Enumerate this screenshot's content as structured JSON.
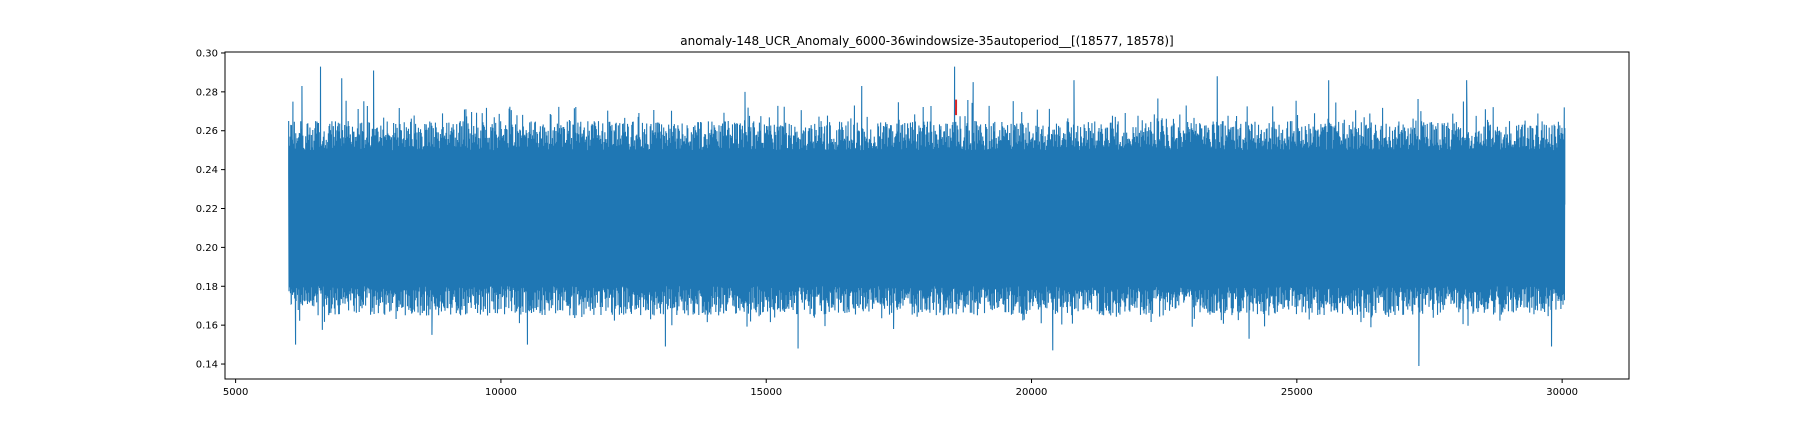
{
  "chart_data": {
    "type": "line",
    "title": "anomaly-148_UCR_Anomaly_6000-36windowsize-35autoperiod__[(18577, 18578)]",
    "xlabel": "",
    "ylabel": "",
    "xlim": [
      4800,
      31260
    ],
    "ylim": [
      0.1323,
      0.3005
    ],
    "x_ticks": [
      5000,
      10000,
      15000,
      20000,
      25000,
      30000
    ],
    "x_tick_labels": [
      "5000",
      "10000",
      "15000",
      "20000",
      "25000",
      "30000"
    ],
    "y_ticks": [
      0.14,
      0.16,
      0.18,
      0.2,
      0.22,
      0.24,
      0.26,
      0.28,
      0.3
    ],
    "y_tick_labels": [
      "0.14",
      "0.16",
      "0.18",
      "0.20",
      "0.22",
      "0.24",
      "0.26",
      "0.28",
      "0.30"
    ],
    "grid": false,
    "legend": "none",
    "series": [
      {
        "color": "#1f77b4",
        "x_range": [
          6000,
          30050
        ],
        "typical_low": 0.165,
        "typical_high": 0.265,
        "annotated_extremes": [
          {
            "x": 6000,
            "y": 0.238
          },
          {
            "x": 6050,
            "y": 0.171
          },
          {
            "x": 6080,
            "y": 0.275
          },
          {
            "x": 6130,
            "y": 0.15
          },
          {
            "x": 6250,
            "y": 0.283
          },
          {
            "x": 6600,
            "y": 0.293
          },
          {
            "x": 7000,
            "y": 0.287
          },
          {
            "x": 7600,
            "y": 0.291
          },
          {
            "x": 8700,
            "y": 0.155
          },
          {
            "x": 10500,
            "y": 0.15
          },
          {
            "x": 13100,
            "y": 0.149
          },
          {
            "x": 14600,
            "y": 0.28
          },
          {
            "x": 15600,
            "y": 0.148
          },
          {
            "x": 16800,
            "y": 0.283
          },
          {
            "x": 17400,
            "y": 0.158
          },
          {
            "x": 18550,
            "y": 0.293
          },
          {
            "x": 18900,
            "y": 0.285
          },
          {
            "x": 20400,
            "y": 0.147
          },
          {
            "x": 20800,
            "y": 0.286
          },
          {
            "x": 23500,
            "y": 0.288
          },
          {
            "x": 24100,
            "y": 0.153
          },
          {
            "x": 25600,
            "y": 0.286
          },
          {
            "x": 27300,
            "y": 0.139
          },
          {
            "x": 28200,
            "y": 0.286
          },
          {
            "x": 29800,
            "y": 0.149
          },
          {
            "x": 30040,
            "y": 0.272
          },
          {
            "x": 30050,
            "y": 0.222
          }
        ]
      }
    ],
    "anomaly": {
      "x_range": [
        18577,
        18578
      ],
      "y_range": [
        0.268,
        0.276
      ],
      "color": "#d62728"
    }
  }
}
